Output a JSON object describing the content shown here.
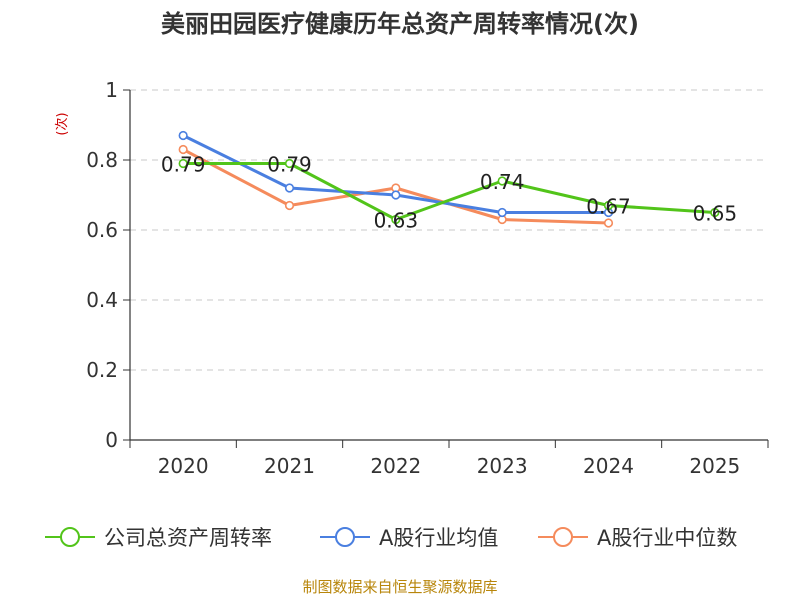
{
  "chart_data": {
    "type": "line",
    "title": "美丽田园医疗健康历年总资产周转率情况(次)",
    "ylabel": "(次)",
    "xlabel": "",
    "categories": [
      "2020",
      "2021",
      "2022",
      "2023",
      "2024",
      "2025"
    ],
    "ylim": [
      0,
      1
    ],
    "yticks": [
      0,
      0.2,
      0.4,
      0.6,
      0.8,
      1
    ],
    "ytick_labels": [
      "0",
      "0.2",
      "0.4",
      "0.6",
      "0.8",
      "1"
    ],
    "grid": true,
    "legend_position": "bottom",
    "series": [
      {
        "name": "公司总资产周转率",
        "color": "#52c41a",
        "values": [
          0.79,
          0.79,
          0.63,
          0.74,
          0.67,
          0.65
        ],
        "labels": [
          "0.79",
          "0.79",
          "0.63",
          "0.74",
          "0.67",
          "0.65"
        ]
      },
      {
        "name": "A股行业均值",
        "color": "#4a7fe0",
        "values": [
          0.87,
          0.72,
          0.7,
          0.65,
          0.65,
          null
        ]
      },
      {
        "name": "A股行业中位数",
        "color": "#f58b5c",
        "values": [
          0.83,
          0.67,
          0.72,
          0.63,
          0.62,
          null
        ]
      }
    ]
  },
  "source": "制图数据来自恒生聚源数据库"
}
